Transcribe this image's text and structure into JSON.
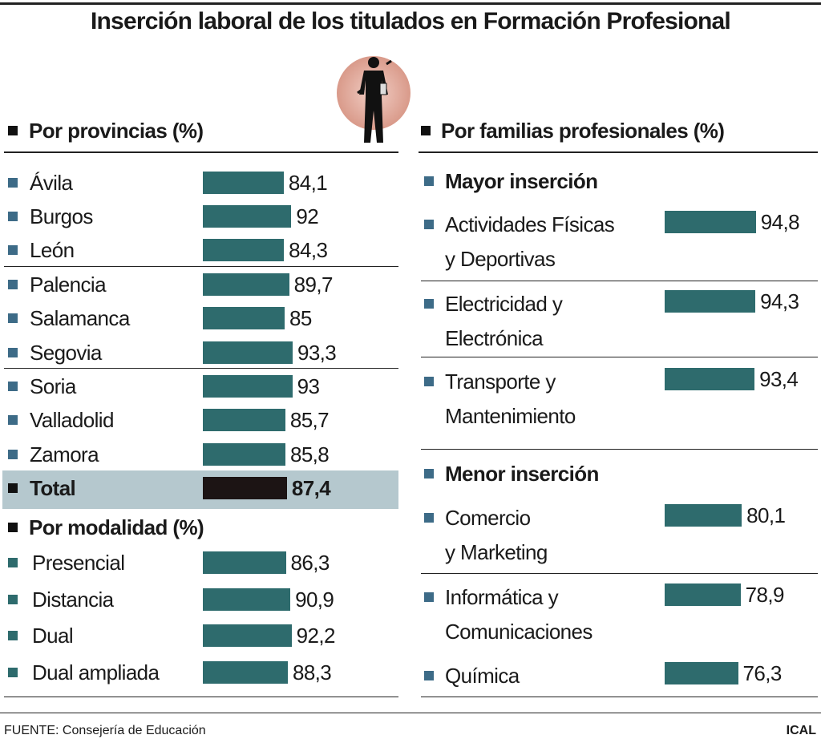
{
  "title": "Inserción laboral de los titulados en Formación Profesional",
  "families_title": "Por familias profesionales (%)",
  "chart_data": [
    {
      "type": "bar",
      "title": "Por provincias (%)",
      "categories": [
        "Ávila",
        "Burgos",
        "León",
        "Palencia",
        "Salamanca",
        "Segovia",
        "Soria",
        "Valladolid",
        "Zamora",
        "Total"
      ],
      "values": [
        84.1,
        92,
        84.3,
        89.7,
        85,
        93.3,
        93,
        85.7,
        85.8,
        87.4
      ],
      "value_labels": [
        "84,1",
        "92",
        "84,3",
        "89,7",
        "85",
        "93,3",
        "93",
        "85,7",
        "85,8",
        "87,4"
      ],
      "colors": [
        "#2e6b6d",
        "#2e6b6d",
        "#2e6b6d",
        "#2e6b6d",
        "#2e6b6d",
        "#2e6b6d",
        "#2e6b6d",
        "#2e6b6d",
        "#2e6b6d",
        "#1c1414"
      ]
    },
    {
      "type": "bar",
      "title": "Por modalidad (%)",
      "categories": [
        "Presencial",
        "Distancia",
        "Dual",
        "Dual ampliada"
      ],
      "values": [
        86.3,
        90.9,
        92.2,
        88.3
      ],
      "value_labels": [
        "86,3",
        "90,9",
        "92,2",
        "88,3"
      ],
      "color": "#2e6b6d"
    },
    {
      "type": "bar",
      "title": "Mayor inserción",
      "categories": [
        [
          "Actividades Físicas",
          "y Deportivas"
        ],
        [
          "Electricidad y",
          "Electrónica"
        ],
        [
          "Transporte y",
          "Mantenimiento"
        ]
      ],
      "values": [
        94.8,
        94.3,
        93.4
      ],
      "value_labels": [
        "94,8",
        "94,3",
        "93,4"
      ],
      "color": "#2e6b6d"
    },
    {
      "type": "bar",
      "title": "Menor inserción",
      "categories": [
        [
          "Comercio",
          "y Marketing"
        ],
        [
          "Informática y",
          "Comunicaciones"
        ],
        [
          "Química"
        ]
      ],
      "values": [
        80.1,
        78.9,
        76.3
      ],
      "value_labels": [
        "80,1",
        "78,9",
        "76,3"
      ],
      "color": "#2e6b6d"
    }
  ],
  "source": "FUENTE: Consejería de Educación",
  "credit": "ICAL"
}
